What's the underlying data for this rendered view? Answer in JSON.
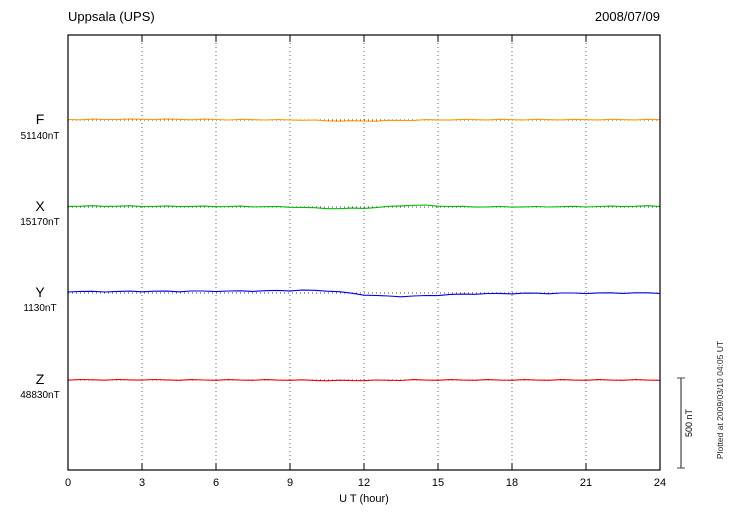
{
  "chart_data": {
    "type": "line",
    "title": "Uppsala (UPS)",
    "date": "2008/07/09",
    "xlabel": "U T (hour)",
    "xlim": [
      0,
      24
    ],
    "x_ticks": [
      0,
      3,
      6,
      9,
      12,
      15,
      18,
      21,
      24
    ],
    "grid": "dotted-vertical-at-3h-and-dotted-baselines",
    "step_hours": 0.5,
    "scale_bar": {
      "label": "500 nT",
      "nT": 500
    },
    "plotted_at": "Plotted at 2009/03/10 04:05 UT",
    "series": [
      {
        "name": "F",
        "baseline_label": "51140nT",
        "color": "#ff9900",
        "offsets_nT": [
          3,
          3,
          3,
          3,
          4,
          4,
          4,
          4,
          4,
          4,
          3,
          3,
          3,
          2,
          2,
          2,
          2,
          1,
          1,
          0,
          -2,
          -4,
          -5,
          -6,
          -6,
          -5,
          -4,
          -2,
          -1,
          0,
          1,
          1,
          2,
          2,
          2,
          2,
          2,
          2,
          2,
          2,
          2,
          2,
          2,
          2,
          2,
          2,
          2,
          2,
          2
        ]
      },
      {
        "name": "X",
        "baseline_label": "15170nT",
        "color": "#00bb00",
        "offsets_nT": [
          5,
          5,
          5,
          5,
          5,
          5,
          4,
          4,
          4,
          4,
          4,
          3,
          3,
          3,
          3,
          2,
          2,
          1,
          0,
          -2,
          -6,
          -8,
          -9,
          -8,
          -6,
          -3,
          2,
          8,
          10,
          9,
          6,
          3,
          2,
          1,
          1,
          1,
          1,
          1,
          1,
          2,
          2,
          2,
          2,
          3,
          3,
          4,
          4,
          5,
          5
        ]
      },
      {
        "name": "Y",
        "baseline_label": "1130nT",
        "color": "#0000ee",
        "offsets_nT": [
          8,
          8,
          8,
          8,
          8,
          9,
          9,
          9,
          9,
          9,
          10,
          10,
          10,
          10,
          11,
          11,
          12,
          13,
          14,
          15,
          14,
          12,
          6,
          -2,
          -10,
          -15,
          -18,
          -19,
          -18,
          -15,
          -12,
          -9,
          -7,
          -5,
          -4,
          -3,
          -3,
          -2,
          -2,
          -2,
          -1,
          -1,
          -1,
          -1,
          0,
          0,
          0,
          0,
          0
        ]
      },
      {
        "name": "Z",
        "baseline_label": "48830nT",
        "color": "#ee0000",
        "offsets_nT": [
          1,
          1,
          1,
          1,
          1,
          1,
          1,
          1,
          1,
          0,
          0,
          0,
          0,
          0,
          0,
          0,
          0,
          0,
          0,
          -1,
          -2,
          -3,
          -3,
          -3,
          -2,
          -2,
          -1,
          -1,
          0,
          0,
          0,
          0,
          0,
          0,
          0,
          0,
          0,
          0,
          0,
          0,
          0,
          0,
          0,
          0,
          0,
          0,
          0,
          0,
          0
        ]
      }
    ]
  }
}
